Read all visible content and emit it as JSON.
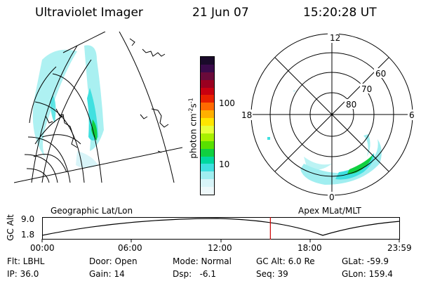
{
  "header": {
    "title": "Ultraviolet Imager",
    "date": "21 Jun 07",
    "time": "15:20:28 UT"
  },
  "colorbar": {
    "label": "photon cm",
    "label_sup1": "-2",
    "label_mid": "s",
    "label_sup2": "-1",
    "ticks": [
      "100",
      "10"
    ],
    "colors": [
      "#1a0a2a",
      "#3a0a4a",
      "#6a0a3a",
      "#9a0020",
      "#c80010",
      "#e82000",
      "#ff6a00",
      "#ffb000",
      "#ffe600",
      "#e8ff3a",
      "#a8f000",
      "#58e000",
      "#10d040",
      "#00d8a0",
      "#40e0e0",
      "#a0eef0",
      "#d8f4f8",
      "#eef8fa"
    ]
  },
  "polar": {
    "mlt_labels": {
      "top": "12",
      "left": "18",
      "right": "6",
      "bottom": "0"
    },
    "lat_labels": [
      "60",
      "70",
      "80"
    ]
  },
  "timeline": {
    "left_title": "Geographic Lat/Lon",
    "right_title": "Apex  MLat/MLT",
    "yaxis_label": "GC Alt",
    "y_ticks": [
      "9.0",
      "1.8"
    ],
    "x_ticks": [
      "00:00",
      "06:00",
      "12:00",
      "18:00",
      "23:59"
    ],
    "marker_color": "#cc0000",
    "marker_time_hours": 15.34
  },
  "info": {
    "row1": [
      "Flt: LBHL",
      "Door: Open",
      "Mode: Normal",
      "GC Alt: 6.0 Re",
      "GLat: -59.9"
    ],
    "row2": [
      "IP: 36.0",
      "Gain: 14",
      "Dsp:   -6.1",
      "Seq: 39",
      "GLon: 159.4"
    ]
  }
}
